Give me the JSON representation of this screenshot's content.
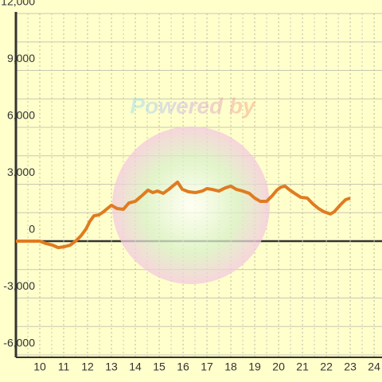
{
  "chart_data": {
    "type": "line",
    "watermark": "Powered by",
    "x": [
      9.0,
      10.0,
      10.27,
      10.53,
      10.77,
      11.0,
      11.27,
      11.5,
      11.73,
      11.93,
      12.1,
      12.27,
      12.47,
      12.67,
      12.83,
      13.0,
      13.23,
      13.5,
      13.73,
      14.0,
      14.27,
      14.53,
      14.73,
      14.93,
      15.17,
      15.4,
      15.6,
      15.77,
      15.97,
      16.23,
      16.53,
      16.8,
      17.0,
      17.2,
      17.5,
      17.77,
      18.0,
      18.23,
      18.5,
      18.77,
      19.0,
      19.23,
      19.5,
      19.73,
      19.93,
      20.1,
      20.27,
      20.43,
      20.67,
      20.93,
      21.2,
      21.43,
      21.67,
      21.9,
      22.17,
      22.33,
      22.6,
      22.8,
      23.0
    ],
    "series": [
      {
        "color": "#e07b20",
        "values": [
          0,
          0,
          -130,
          -210,
          -340,
          -300,
          -210,
          0,
          290,
          630,
          1050,
          1340,
          1380,
          1550,
          1720,
          1890,
          1720,
          1680,
          2010,
          2100,
          2390,
          2690,
          2560,
          2640,
          2520,
          2730,
          2940,
          3110,
          2730,
          2600,
          2560,
          2640,
          2770,
          2730,
          2640,
          2810,
          2900,
          2730,
          2640,
          2520,
          2270,
          2100,
          2100,
          2390,
          2690,
          2850,
          2900,
          2730,
          2520,
          2310,
          2270,
          1970,
          1720,
          1550,
          1430,
          1550,
          1930,
          2180,
          2270
        ]
      }
    ],
    "xlim": [
      9,
      24.33
    ],
    "xticks": [
      10,
      11,
      12,
      13,
      14,
      15,
      16,
      17,
      18,
      19,
      20,
      21,
      22,
      23,
      24
    ],
    "x_minor_ticks": [
      9.5,
      10.5,
      11.5,
      12.5,
      13.5,
      14.5,
      15.5,
      16.5,
      17.5,
      18.5,
      19.5,
      20.5,
      21.5,
      22.5,
      23.5
    ],
    "ylim": [
      -6000,
      12000
    ],
    "yticks": [
      {
        "value": -6000,
        "label": "-6,000"
      },
      {
        "value": -3000,
        "label": "-3,000"
      },
      0,
      {
        "value": 3000,
        "label": "3,000"
      },
      {
        "value": 6000,
        "label": "6,000"
      },
      {
        "value": 9000,
        "label": "9,000"
      },
      {
        "value": 12000,
        "label": "12,000"
      }
    ],
    "y_minor_ticks": [
      -4500,
      -1500,
      1500,
      4500,
      7500,
      10500
    ],
    "grid": true
  }
}
